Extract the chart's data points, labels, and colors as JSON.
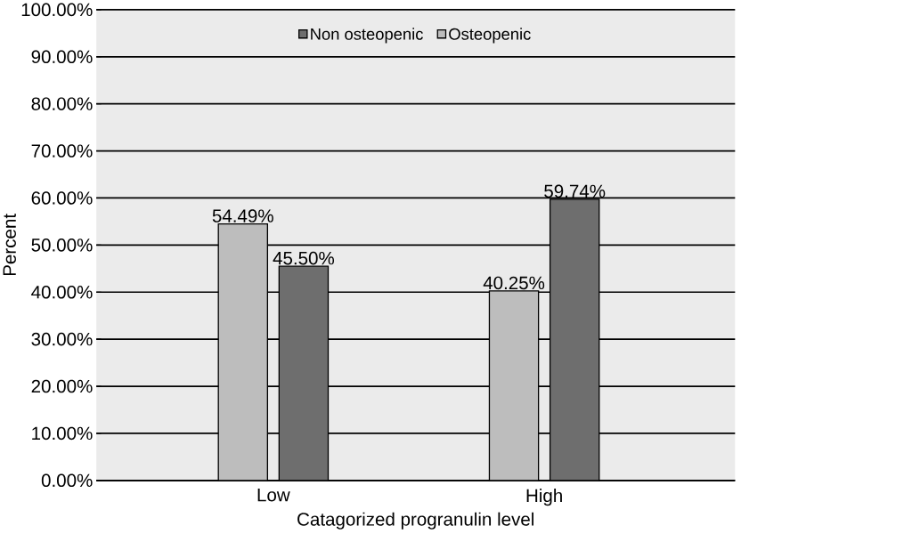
{
  "chart_data": {
    "type": "bar",
    "xlabel": "Catagorized progranulin level",
    "ylabel": "Percent",
    "categories": [
      "Low",
      "High"
    ],
    "series": [
      {
        "name": "Osteopenic",
        "color": "#bdbdbd",
        "values": [
          54.49,
          40.25
        ],
        "value_labels": [
          "54.49%",
          "40.25%"
        ]
      },
      {
        "name": "Non osteopenic",
        "color": "#6e6e6e",
        "values": [
          45.5,
          59.74
        ],
        "value_labels": [
          "45.50%",
          "59.74%"
        ]
      }
    ],
    "ylim": [
      0,
      100
    ],
    "yticks": [
      {
        "value": 0,
        "label": "0.00%"
      },
      {
        "value": 10,
        "label": "10.00%"
      },
      {
        "value": 20,
        "label": "20.00%"
      },
      {
        "value": 30,
        "label": "30.00%"
      },
      {
        "value": 40,
        "label": "40.00%"
      },
      {
        "value": 50,
        "label": "50.00%"
      },
      {
        "value": 60,
        "label": "60.00%"
      },
      {
        "value": 70,
        "label": "70.00%"
      },
      {
        "value": 80,
        "label": "80.00%"
      },
      {
        "value": 90,
        "label": "90.00%"
      },
      {
        "value": 100,
        "label": "100.00%"
      }
    ],
    "grid": "y",
    "legend": "top"
  }
}
